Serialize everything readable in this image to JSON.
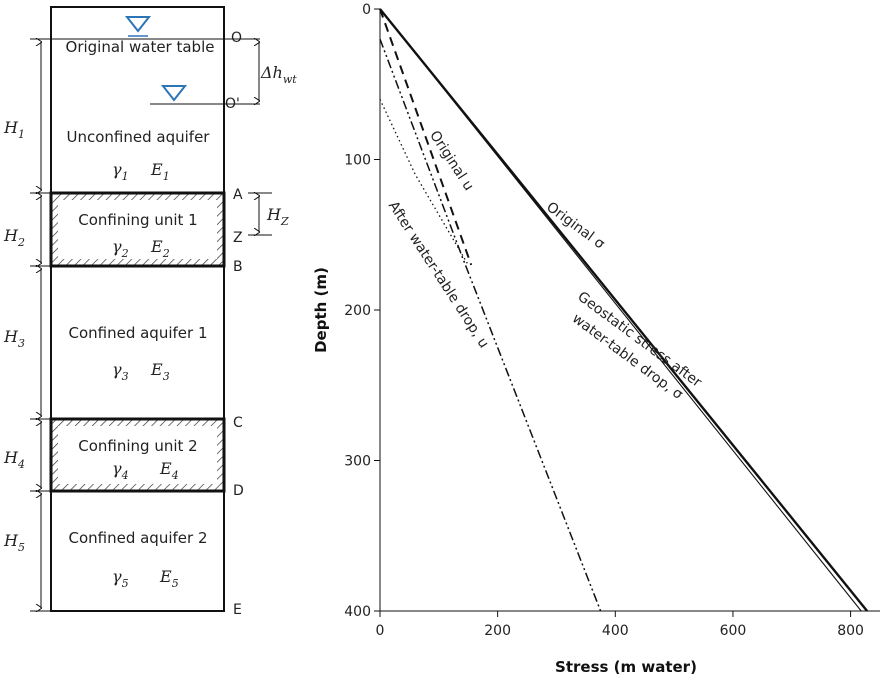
{
  "column": {
    "layers": [
      {
        "id": "unconfined",
        "name": "Unconfined aquifer",
        "gamma": "γ",
        "gamma_sub": "1",
        "E": "E",
        "E_sub": "1",
        "thickness": "H",
        "thickness_sub": "1",
        "hatched": false
      },
      {
        "id": "confining1",
        "name": "Confining unit 1",
        "gamma": "γ",
        "gamma_sub": "2",
        "E": "E",
        "E_sub": "2",
        "thickness": "H",
        "thickness_sub": "2",
        "hatched": true
      },
      {
        "id": "confined1",
        "name": "Confined aquifer 1",
        "gamma": "γ",
        "gamma_sub": "3",
        "E": "E",
        "E_sub": "3",
        "thickness": "H",
        "thickness_sub": "3",
        "hatched": false
      },
      {
        "id": "confining2",
        "name": "Confining unit 2",
        "gamma": "γ",
        "gamma_sub": "4",
        "E": "E",
        "E_sub": "4",
        "thickness": "H",
        "thickness_sub": "4",
        "hatched": true
      },
      {
        "id": "confined2",
        "name": "Confined aquifer 2",
        "gamma": "γ",
        "gamma_sub": "5",
        "E": "E",
        "E_sub": "5",
        "thickness": "H",
        "thickness_sub": "5",
        "hatched": false
      }
    ],
    "water_table_label": "Original water table",
    "points": {
      "O": "O",
      "O_prime": "O'",
      "A": "A",
      "Z": "Z",
      "B": "B",
      "C": "C",
      "D": "D",
      "E": "E"
    },
    "delta_h": {
      "sym": "Δh",
      "sub": "wt"
    },
    "h_z": {
      "sym": "H",
      "sub": "Z"
    },
    "water_symbol_color": "#2e75b6"
  },
  "chart_data": {
    "type": "line",
    "title": "",
    "xlabel": "Stress (m water)",
    "ylabel": "Depth (m)",
    "xlim": [
      0,
      850
    ],
    "ylim": [
      400,
      0
    ],
    "y_inverted": true,
    "x_axis_position": "bottom",
    "y_axis_position": "left",
    "grid": false,
    "xticks": [
      0,
      200,
      400,
      600,
      800
    ],
    "yticks": [
      0,
      100,
      200,
      300,
      400
    ],
    "series": [
      {
        "id": "orig_sigma",
        "name": "Original σ",
        "style": "solid-thick",
        "x": [
          0,
          828
        ],
        "y": [
          0,
          400
        ]
      },
      {
        "id": "geo_sigma",
        "name": "Geostatic stress after water-table drop, σ",
        "style": "solid-thin",
        "x": [
          0,
          818
        ],
        "y": [
          0,
          400
        ]
      },
      {
        "id": "orig_u",
        "name": "Original u",
        "style": "dashed",
        "x": [
          0,
          155
        ],
        "y": [
          0,
          170
        ]
      },
      {
        "id": "after_u",
        "name": "After water-table drop, u",
        "style": "dash-dot-dot",
        "x": [
          0,
          140,
          375
        ],
        "y": [
          20,
          165,
          400
        ]
      },
      {
        "id": "dotted_u",
        "name": "",
        "style": "dotted",
        "x": [
          0,
          60,
          150
        ],
        "y": [
          60,
          110,
          170
        ]
      }
    ]
  }
}
